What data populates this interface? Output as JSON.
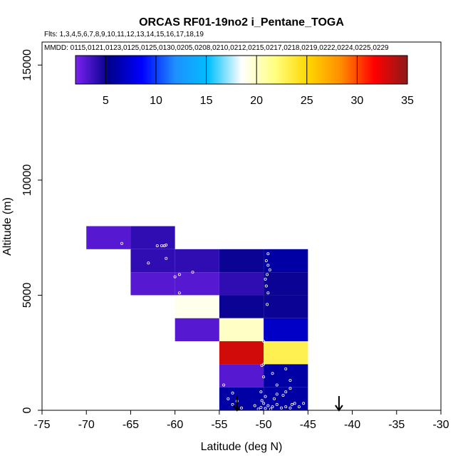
{
  "chart_data": {
    "type": "heatmap",
    "title": "ORCAS RF01-19no2 i_Pentane_TOGA",
    "flights_note": "Flts: 1,3,4,5,6,7,8,9,10,11,12,13,14,15,16,17,18,19",
    "dates_note": "MMDD: 0115,0121,0123,0125,0125,0130,0205,0208,0210,0212,0215,0217,0218,0219,0222,0224,0225,0229",
    "xlabel": "Latitude (deg N)",
    "ylabel": "Altitude (m)",
    "xlim": [
      -75,
      -30
    ],
    "ylim": [
      0,
      16000
    ],
    "xticks": [
      -75,
      -70,
      -65,
      -60,
      -55,
      -50,
      -45,
      -40,
      -35,
      -30
    ],
    "yticks": [
      0,
      5000,
      10000,
      15000
    ],
    "colorbar": {
      "range": [
        2,
        35
      ],
      "ticks": [
        5,
        10,
        15,
        20,
        25,
        30,
        35
      ],
      "stops": [
        "#7b22f0",
        "#00008b",
        "#0000ff",
        "#1e8fff",
        "#00bfff",
        "#ffffff",
        "#ffff80",
        "#ffd700",
        "#ff8c00",
        "#ff0000",
        "#8b1a1a"
      ]
    },
    "cells": [
      {
        "x0": -70,
        "x1": -65,
        "y0": 7000,
        "y1": 8000,
        "value": 3
      },
      {
        "x0": -65,
        "x1": -60,
        "y0": 7000,
        "y1": 8000,
        "value": 4
      },
      {
        "x0": -65,
        "x1": -60,
        "y0": 6000,
        "y1": 7000,
        "value": 4
      },
      {
        "x0": -60,
        "x1": -55,
        "y0": 6000,
        "y1": 7000,
        "value": 4
      },
      {
        "x0": -55,
        "x1": -50,
        "y0": 6000,
        "y1": 7000,
        "value": 5
      },
      {
        "x0": -50,
        "x1": -45,
        "y0": 6000,
        "y1": 7000,
        "value": 6
      },
      {
        "x0": -65,
        "x1": -60,
        "y0": 5000,
        "y1": 6000,
        "value": 3
      },
      {
        "x0": -60,
        "x1": -55,
        "y0": 5000,
        "y1": 6000,
        "value": 3
      },
      {
        "x0": -55,
        "x1": -50,
        "y0": 5000,
        "y1": 6000,
        "value": 4
      },
      {
        "x0": -50,
        "x1": -45,
        "y0": 5000,
        "y1": 6000,
        "value": 5
      },
      {
        "x0": -60,
        "x1": -55,
        "y0": 4000,
        "y1": 5000,
        "value": 19
      },
      {
        "x0": -55,
        "x1": -50,
        "y0": 4000,
        "y1": 5000,
        "value": 5
      },
      {
        "x0": -50,
        "x1": -45,
        "y0": 4000,
        "y1": 5000,
        "value": 5
      },
      {
        "x0": -60,
        "x1": -55,
        "y0": 3000,
        "y1": 4000,
        "value": 3
      },
      {
        "x0": -55,
        "x1": -50,
        "y0": 3000,
        "y1": 4000,
        "value": 20
      },
      {
        "x0": -50,
        "x1": -45,
        "y0": 3000,
        "y1": 4000,
        "value": 7
      },
      {
        "x0": -55,
        "x1": -50,
        "y0": 2000,
        "y1": 3000,
        "value": 33
      },
      {
        "x0": -50,
        "x1": -45,
        "y0": 2000,
        "y1": 3000,
        "value": 23
      },
      {
        "x0": -55,
        "x1": -50,
        "y0": 1000,
        "y1": 2000,
        "value": 3
      },
      {
        "x0": -50,
        "x1": -45,
        "y0": 1000,
        "y1": 2000,
        "value": 6
      },
      {
        "x0": -55,
        "x1": -50,
        "y0": 0,
        "y1": 1000,
        "value": 6
      },
      {
        "x0": -50,
        "x1": -45,
        "y0": 0,
        "y1": 1000,
        "value": 6
      }
    ],
    "sample_points": [
      [
        -66.0,
        7250
      ],
      [
        -62.0,
        7150
      ],
      [
        -61.5,
        7150
      ],
      [
        -61.2,
        7150
      ],
      [
        -61.0,
        7180
      ],
      [
        -63.0,
        6400
      ],
      [
        -61.0,
        6600
      ],
      [
        -58.0,
        6000
      ],
      [
        -59.5,
        5900
      ],
      [
        -60.0,
        5800
      ],
      [
        -59.5,
        5100
      ],
      [
        -49.5,
        6800
      ],
      [
        -49.7,
        6500
      ],
      [
        -49.5,
        6300
      ],
      [
        -49.3,
        6100
      ],
      [
        -49.6,
        5900
      ],
      [
        -49.8,
        5700
      ],
      [
        -49.7,
        5400
      ],
      [
        -49.5,
        5100
      ],
      [
        -49.6,
        4600
      ],
      [
        -50.0,
        3000
      ],
      [
        -56.0,
        2850
      ],
      [
        -55.5,
        2400
      ],
      [
        -50.0,
        2000
      ],
      [
        -50.2,
        1950
      ],
      [
        -47.5,
        1800
      ],
      [
        -49.0,
        1600
      ],
      [
        -50.0,
        1450
      ],
      [
        -47.0,
        1300
      ],
      [
        -54.5,
        1100
      ],
      [
        -48.5,
        1100
      ],
      [
        -53.5,
        750
      ],
      [
        -50.3,
        800
      ],
      [
        -47.0,
        950
      ],
      [
        -47.5,
        800
      ],
      [
        -47.8,
        650
      ],
      [
        -48.5,
        700
      ],
      [
        -48.8,
        500
      ],
      [
        -49.8,
        600
      ],
      [
        -54.0,
        500
      ],
      [
        -53.0,
        400
      ],
      [
        -50.2,
        420
      ],
      [
        -50.0,
        300
      ],
      [
        -49.5,
        200
      ],
      [
        -48.5,
        250
      ],
      [
        -47.5,
        150
      ],
      [
        -46.5,
        300
      ],
      [
        -49.0,
        150
      ],
      [
        -47.0,
        100
      ],
      [
        -46.0,
        150
      ],
      [
        -49.8,
        80
      ],
      [
        -50.3,
        120
      ],
      [
        -51.0,
        200
      ],
      [
        -45.5,
        300
      ],
      [
        -46.8,
        250
      ],
      [
        -48.0,
        100
      ],
      [
        -52.5,
        100
      ],
      [
        -53.5,
        250
      ],
      [
        -50.6,
        50
      ],
      [
        -49.2,
        50
      ]
    ],
    "arrows_lat": [
      -53.0,
      -41.5
    ]
  }
}
